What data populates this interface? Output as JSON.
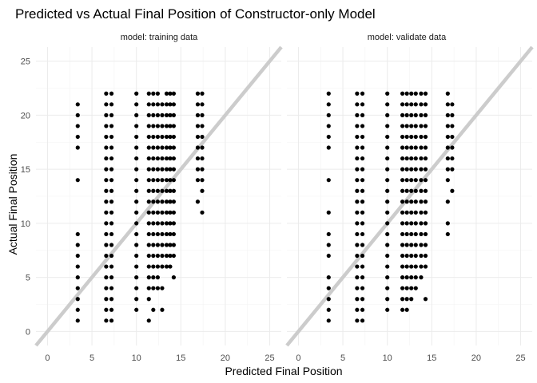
{
  "chart_data": {
    "type": "scatter",
    "title": "Predicted vs Actual Final Position of Constructor-only Model",
    "xlabel": "Predicted Final Position",
    "ylabel": "Actual Final Position",
    "xlim": [
      -1.3,
      26.3
    ],
    "ylim": [
      -1.3,
      26.3
    ],
    "x_ticks": [
      0,
      5,
      10,
      15,
      20,
      25
    ],
    "y_ticks": [
      0,
      5,
      10,
      15,
      20,
      25
    ],
    "grid": true,
    "reference_line": {
      "slope": 1,
      "intercept": 0,
      "color": "#cccccc"
    },
    "point_color": "#000000",
    "panels": [
      {
        "label": "model: training data",
        "columns": [
          {
            "x": 3.4,
            "y": [
              1,
              2,
              3,
              4,
              5,
              6,
              7,
              8,
              9,
              14,
              17,
              18,
              19,
              20,
              21
            ]
          },
          {
            "x": 6.6,
            "y": [
              1,
              2,
              3,
              4,
              5,
              6,
              7,
              8,
              9,
              10,
              11,
              12,
              13,
              14,
              15,
              16,
              17,
              18,
              19,
              20,
              21,
              22
            ]
          },
          {
            "x": 7.2,
            "y": [
              1,
              2,
              3,
              4,
              5,
              6,
              7,
              8,
              9,
              10,
              11,
              12,
              13,
              14,
              15,
              16,
              17,
              18,
              19,
              20,
              21,
              22
            ]
          },
          {
            "x": 10.0,
            "y": [
              2,
              3,
              4,
              5,
              6,
              7,
              8,
              9,
              10,
              11,
              12,
              13,
              14,
              15,
              16,
              17,
              18,
              19,
              20,
              21,
              22
            ]
          },
          {
            "x": 11.4,
            "y": [
              1,
              3,
              4,
              5,
              6,
              7,
              8,
              9,
              10,
              11,
              12,
              13,
              14,
              15,
              16,
              17,
              18,
              19,
              20,
              21,
              22
            ]
          },
          {
            "x": 11.9,
            "y": [
              2,
              4,
              5,
              6,
              7,
              8,
              9,
              10,
              11,
              12,
              13,
              14,
              15,
              16,
              17,
              18,
              19,
              20,
              21,
              22
            ]
          },
          {
            "x": 12.4,
            "y": [
              4,
              5,
              6,
              7,
              8,
              9,
              10,
              11,
              12,
              13,
              14,
              15,
              16,
              17,
              18,
              19,
              20,
              21,
              22
            ]
          },
          {
            "x": 12.9,
            "y": [
              2,
              4,
              6,
              7,
              8,
              9,
              10,
              11,
              12,
              13,
              14,
              15,
              16,
              17,
              18,
              19,
              20,
              21
            ]
          },
          {
            "x": 13.4,
            "y": [
              6,
              7,
              8,
              9,
              10,
              11,
              12,
              13,
              14,
              15,
              16,
              17,
              18,
              19,
              20,
              21,
              22
            ]
          },
          {
            "x": 13.8,
            "y": [
              6,
              7,
              8,
              9,
              10,
              11,
              12,
              13,
              14,
              15,
              16,
              17,
              18,
              19,
              20,
              21,
              22
            ]
          },
          {
            "x": 14.2,
            "y": [
              5,
              7,
              8,
              9,
              10,
              11,
              12,
              13,
              14,
              15,
              16,
              17,
              18,
              19,
              20,
              21,
              22
            ]
          },
          {
            "x": 16.9,
            "y": [
              12,
              14,
              15,
              16,
              17,
              18,
              19,
              20,
              21,
              22
            ]
          },
          {
            "x": 17.4,
            "y": [
              11,
              13,
              14,
              15,
              16,
              17,
              18,
              19,
              20,
              21,
              22
            ]
          }
        ]
      },
      {
        "label": "model: validate data",
        "columns": [
          {
            "x": 3.4,
            "y": [
              1,
              2,
              3,
              4,
              5,
              7,
              8,
              9,
              11,
              14,
              17,
              18,
              19,
              20,
              21,
              22
            ]
          },
          {
            "x": 6.6,
            "y": [
              1,
              2,
              3,
              4,
              5,
              6,
              7,
              8,
              9,
              10,
              11,
              12,
              13,
              14,
              15,
              16,
              17,
              18,
              19,
              20,
              21,
              22
            ]
          },
          {
            "x": 7.2,
            "y": [
              1,
              2,
              3,
              4,
              5,
              6,
              7,
              8,
              9,
              10,
              11,
              12,
              13,
              14,
              15,
              16,
              17,
              18,
              19,
              20,
              21,
              22
            ]
          },
          {
            "x": 10.0,
            "y": [
              2,
              3,
              4,
              5,
              6,
              7,
              8,
              9,
              10,
              11,
              12,
              13,
              14,
              15,
              16,
              17,
              18,
              19,
              20,
              21,
              22
            ]
          },
          {
            "x": 11.7,
            "y": [
              2,
              3,
              4,
              5,
              6,
              7,
              8,
              9,
              10,
              11,
              12,
              13,
              14,
              15,
              16,
              17,
              18,
              19,
              20,
              21,
              22
            ]
          },
          {
            "x": 12.2,
            "y": [
              2,
              3,
              4,
              5,
              6,
              7,
              8,
              9,
              10,
              11,
              12,
              13,
              14,
              15,
              16,
              17,
              18,
              19,
              20,
              21,
              22
            ]
          },
          {
            "x": 12.7,
            "y": [
              3,
              4,
              5,
              6,
              7,
              8,
              9,
              10,
              11,
              12,
              13,
              14,
              15,
              16,
              17,
              18,
              19,
              20,
              21,
              22
            ]
          },
          {
            "x": 13.2,
            "y": [
              4,
              5,
              6,
              7,
              8,
              9,
              10,
              11,
              12,
              13,
              14,
              15,
              16,
              17,
              18,
              19,
              20,
              21,
              22
            ]
          },
          {
            "x": 13.8,
            "y": [
              5,
              6,
              7,
              8,
              9,
              10,
              11,
              12,
              13,
              14,
              15,
              16,
              17,
              18,
              19,
              20,
              21,
              22
            ]
          },
          {
            "x": 14.3,
            "y": [
              3,
              6,
              7,
              8,
              9,
              10,
              11,
              12,
              13,
              14,
              15,
              16,
              17,
              18,
              19,
              20,
              21,
              22
            ]
          },
          {
            "x": 16.8,
            "y": [
              9,
              10,
              12,
              14,
              15,
              16,
              17,
              18,
              19,
              20,
              21,
              22
            ]
          },
          {
            "x": 17.3,
            "y": [
              13,
              15,
              16,
              17,
              18,
              19,
              20,
              21
            ]
          }
        ]
      }
    ]
  }
}
